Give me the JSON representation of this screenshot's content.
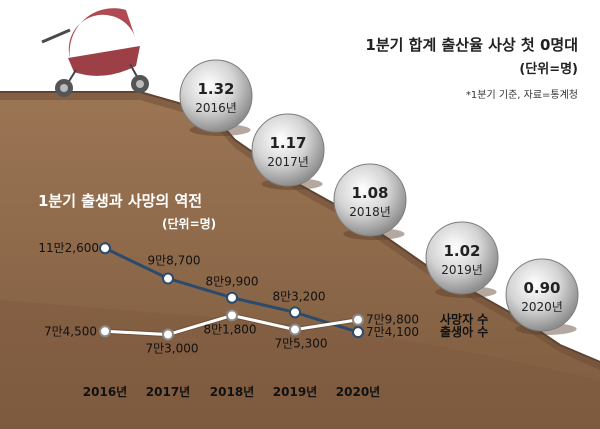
{
  "chart_data": [
    {
      "type": "scatter",
      "title": "1분기 합계 출산율 사상 첫 0명대",
      "unit": "(단위=명)",
      "note": "*1분기 기준, 자료=통계청",
      "points": [
        {
          "label": "2016년",
          "value": 1.32,
          "display": "1.32"
        },
        {
          "label": "2017년",
          "value": 1.17,
          "display": "1.17"
        },
        {
          "label": "2018년",
          "value": 1.08,
          "display": "1.08"
        },
        {
          "label": "2019년",
          "value": 1.02,
          "display": "1.02"
        },
        {
          "label": "2020년",
          "value": 0.9,
          "display": "0.90"
        }
      ]
    },
    {
      "type": "line",
      "title": "1분기 출생과 사망의 역전",
      "unit": "(단위=명)",
      "categories": [
        "2016년",
        "2017년",
        "2018년",
        "2019년",
        "2020년"
      ],
      "ylim": [
        65000,
        115000
      ],
      "series": [
        {
          "name": "출생아 수",
          "color": "#2c4a6b",
          "values": [
            112600,
            98700,
            89900,
            83200,
            74100
          ],
          "labels": [
            "11만2,600",
            "9만8,700",
            "8만9,900",
            "8만3,200",
            "7만4,100"
          ]
        },
        {
          "name": "사망자 수",
          "color": "#ffffff",
          "values": [
            74500,
            73000,
            81800,
            75300,
            79800
          ],
          "labels": [
            "7만4,500",
            "7만3,000",
            "8만1,800",
            "7만5,300",
            "7만9,800"
          ]
        }
      ]
    }
  ],
  "colors": {
    "hill": "#8f6a4c",
    "hill_dark": "#6d4d35",
    "sky": "#ffffff",
    "ball": "#c9c9c9",
    "stroller": "#b04a52"
  }
}
